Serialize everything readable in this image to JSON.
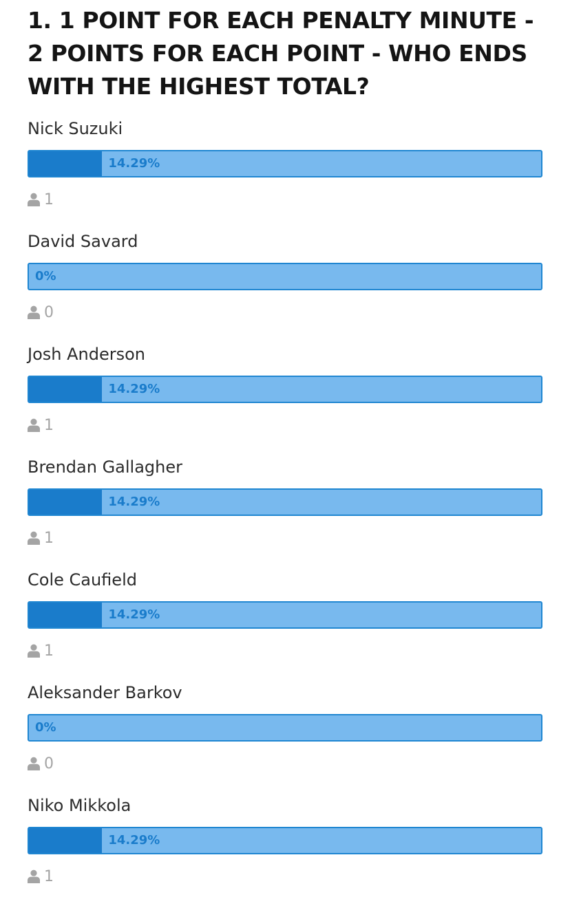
{
  "poll": {
    "question": "1. 1 POINT FOR EACH PENALTY MINUTE - 2 POINTS FOR EACH POINT - WHO ENDS WITH THE HIGHEST TOTAL?",
    "colors": {
      "bar_background": "#78b9ee",
      "bar_fill": "#1a7ccb",
      "bar_border": "#1f86d1",
      "percent_text": "#1a7ccb",
      "voter_icon": "#a4a4a4"
    },
    "voter_icon": "user-icon",
    "options": [
      {
        "label": "Nick Suzuki",
        "percent_text": "14.29%",
        "percent": 14.29,
        "voters": "1"
      },
      {
        "label": "David Savard",
        "percent_text": "0%",
        "percent": 0,
        "voters": "0"
      },
      {
        "label": "Josh Anderson",
        "percent_text": "14.29%",
        "percent": 14.29,
        "voters": "1"
      },
      {
        "label": "Brendan Gallagher",
        "percent_text": "14.29%",
        "percent": 14.29,
        "voters": "1"
      },
      {
        "label": "Cole Caufield",
        "percent_text": "14.29%",
        "percent": 14.29,
        "voters": "1"
      },
      {
        "label": "Aleksander Barkov",
        "percent_text": "0%",
        "percent": 0,
        "voters": "0"
      },
      {
        "label": "Niko Mikkola",
        "percent_text": "14.29%",
        "percent": 14.29,
        "voters": "1"
      }
    ]
  }
}
